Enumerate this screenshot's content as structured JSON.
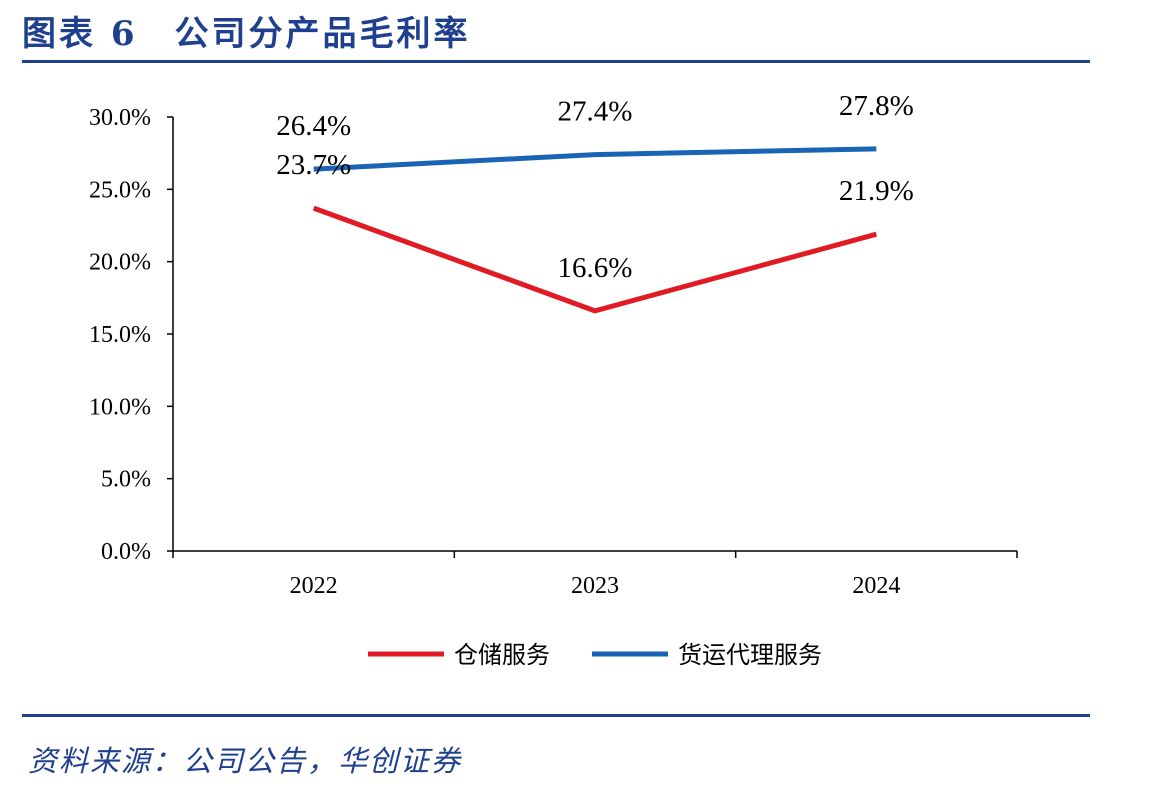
{
  "header": {
    "title": "图表 6　公司分产品毛利率"
  },
  "footer": {
    "source": "资料来源：公司公告，华创证券"
  },
  "chart_data": {
    "type": "line",
    "title": "",
    "xlabel": "",
    "ylabel": "",
    "x": [
      "2022",
      "2023",
      "2024"
    ],
    "ylim": [
      0,
      30
    ],
    "yticks": [
      "0.0%",
      "5.0%",
      "10.0%",
      "15.0%",
      "20.0%",
      "25.0%",
      "30.0%"
    ],
    "grid": false,
    "legend_position": "bottom",
    "series": [
      {
        "name": "仓储服务",
        "values": [
          23.7,
          16.6,
          21.9
        ],
        "labels": [
          "23.7%",
          "16.6%",
          "21.9%"
        ],
        "color": "#e01b24"
      },
      {
        "name": "货运代理服务",
        "values": [
          26.4,
          27.4,
          27.8
        ],
        "labels": [
          "26.4%",
          "27.4%",
          "27.8%"
        ],
        "color": "#1a64b5"
      }
    ]
  }
}
